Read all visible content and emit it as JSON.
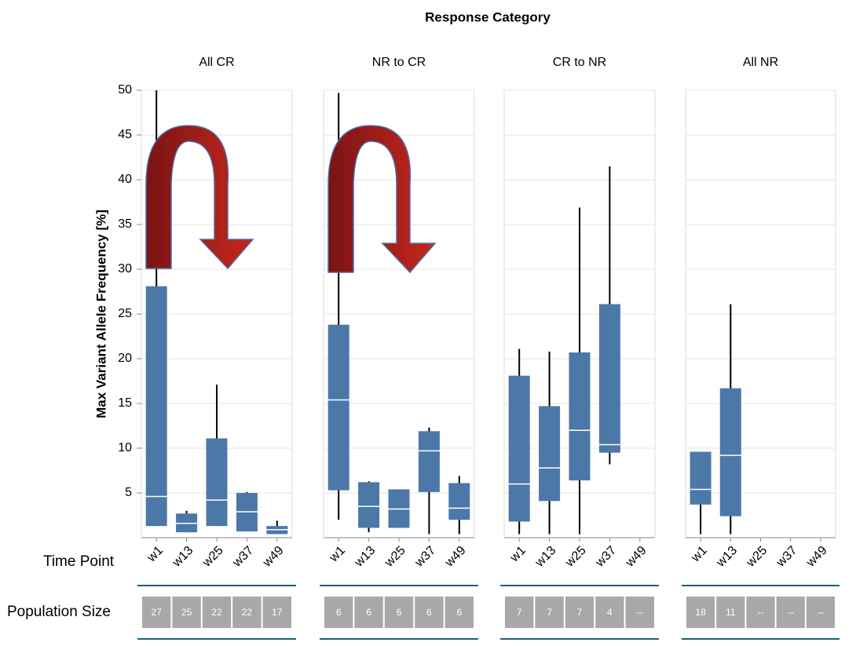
{
  "title": "Response Category",
  "x_label": "Time Point",
  "population_label": "Population Size",
  "chart_data": [
    {
      "type": "box",
      "title": "All CR",
      "y_label": "Max Variant Allele Frequency [%]",
      "categories": [
        "w1",
        "w13",
        "w25",
        "w37",
        "w49"
      ],
      "ylim": [
        0,
        50
      ],
      "yticks": [
        5,
        10,
        15,
        20,
        25,
        30,
        35,
        40,
        45,
        50
      ],
      "grid": true,
      "color": "#4c78a8",
      "values": [
        {
          "min": 1.3,
          "q1": 1.3,
          "median": 4.6,
          "q3": 28.1,
          "max": 50
        },
        {
          "min": 0.6,
          "q1": 0.6,
          "median": 1.6,
          "q3": 2.7,
          "max": 3
        },
        {
          "min": 1.3,
          "q1": 1.3,
          "median": 4.2,
          "q3": 11.1,
          "max": 17.1
        },
        {
          "min": 0.7,
          "q1": 0.7,
          "median": 2.9,
          "q3": 5.0,
          "max": 5.1
        },
        {
          "min": 0.4,
          "q1": 0.4,
          "median": 0.9,
          "q3": 1.3,
          "max": 1.9
        }
      ],
      "population": [
        27,
        25,
        22,
        22,
        17
      ]
    },
    {
      "type": "box",
      "title": "NR to CR",
      "categories": [
        "w1",
        "w13",
        "w25",
        "w37",
        "w49"
      ],
      "ylim": [
        0,
        50
      ],
      "yticks": [
        5,
        10,
        15,
        20,
        25,
        30,
        35,
        40,
        45,
        50
      ],
      "grid": true,
      "color": "#4c78a8",
      "values": [
        {
          "min": 2.0,
          "q1": 5.3,
          "median": 15.4,
          "q3": 23.8,
          "max": 49.7
        },
        {
          "min": 0.6,
          "q1": 1.1,
          "median": 3.5,
          "q3": 6.2,
          "max": 6.3
        },
        {
          "min": 1.1,
          "q1": 1.1,
          "median": 3.2,
          "q3": 5.4,
          "max": 5.4
        },
        {
          "min": 0.4,
          "q1": 5.1,
          "median": 9.7,
          "q3": 11.9,
          "max": 12.3
        },
        {
          "min": 0.4,
          "q1": 2.0,
          "median": 3.3,
          "q3": 6.1,
          "max": 6.9
        }
      ],
      "population": [
        6,
        6,
        6,
        6,
        6
      ]
    },
    {
      "type": "box",
      "title": "CR to NR",
      "categories": [
        "w1",
        "w13",
        "w25",
        "w37",
        "w49"
      ],
      "ylim": [
        0,
        50
      ],
      "yticks": [
        5,
        10,
        15,
        20,
        25,
        30,
        35,
        40,
        45,
        50
      ],
      "grid": true,
      "color": "#4c78a8",
      "values": [
        {
          "min": 0.4,
          "q1": 1.8,
          "median": 6.0,
          "q3": 18.1,
          "max": 21.1
        },
        {
          "min": 0.4,
          "q1": 4.1,
          "median": 7.8,
          "q3": 14.7,
          "max": 20.8
        },
        {
          "min": 0.4,
          "q1": 6.4,
          "median": 12.0,
          "q3": 20.7,
          "max": 36.9
        },
        {
          "min": 8.2,
          "q1": 9.5,
          "median": 10.4,
          "q3": 26.1,
          "max": 41.5
        },
        null
      ],
      "population": [
        7,
        7,
        7,
        4,
        "--"
      ]
    },
    {
      "type": "box",
      "title": "All NR",
      "categories": [
        "w1",
        "w13",
        "w25",
        "w37",
        "w49"
      ],
      "ylim": [
        0,
        50
      ],
      "yticks": [
        5,
        10,
        15,
        20,
        25,
        30,
        35,
        40,
        45,
        50
      ],
      "grid": true,
      "color": "#4c78a8",
      "values": [
        {
          "min": 0.4,
          "q1": 3.7,
          "median": 5.4,
          "q3": 9.6,
          "max": 9.6
        },
        {
          "min": 0.4,
          "q1": 2.4,
          "median": 9.2,
          "q3": 16.7,
          "max": 26.1
        },
        null,
        null,
        null
      ],
      "population": [
        18,
        11,
        "--",
        "--",
        "--"
      ]
    }
  ]
}
